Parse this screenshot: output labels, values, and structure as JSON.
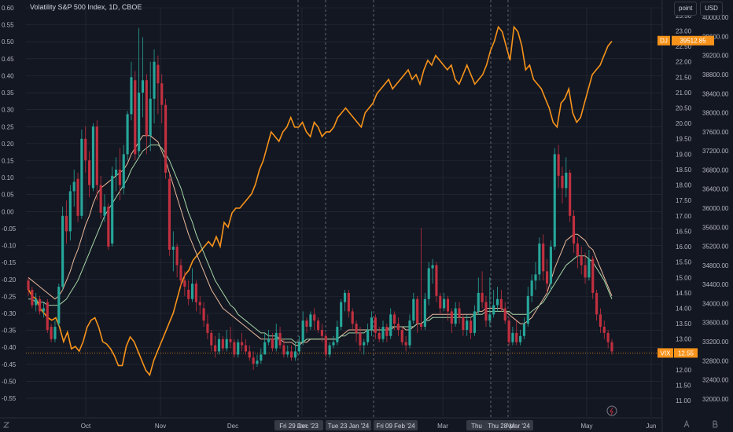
{
  "header": {
    "title": "Volatility S&P 500 Index, 1D, CBOE",
    "scale_mode_button": "point",
    "currency_button": "USD"
  },
  "colors": {
    "background": "#131722",
    "up": "#26a69a",
    "down": "#c2303f",
    "overlay": "#f7931a",
    "ma_fast": "#e8b89a",
    "ma_slow": "#a5d6a7",
    "grid": "#2a2e39",
    "vix_line": "#f7931a"
  },
  "chart_data": {
    "type": "candlestick",
    "title": "Volatility S&P 500 Index, 1D, CBOE",
    "left_axis": {
      "label": "",
      "ticks": [
        "0.60",
        "0.55",
        "0.50",
        "0.45",
        "0.40",
        "0.35",
        "0.30",
        "0.25",
        "0.20",
        "0.15",
        "0.10",
        "0.05",
        "0.00",
        "-0.05",
        "-0.10",
        "-0.15",
        "-0.20",
        "-0.25",
        "-0.30",
        "-0.35",
        "-0.40",
        "-0.45",
        "-0.50",
        "-0.55"
      ],
      "range": [
        -0.58,
        0.6
      ]
    },
    "right_axis_inner": {
      "label": "",
      "ticks": [
        "23.50",
        "23.00",
        "22.50",
        "22.00",
        "21.50",
        "21.00",
        "20.50",
        "20.00",
        "19.50",
        "19.00",
        "18.50",
        "18.00",
        "17.50",
        "17.00",
        "16.50",
        "16.00",
        "15.50",
        "15.00",
        "14.50",
        "14.00",
        "13.50",
        "13.00",
        "12.50",
        "12.00",
        "11.50",
        "11.00"
      ],
      "range": [
        10.75,
        23.75
      ]
    },
    "right_axis_outer": {
      "label": "",
      "ticks": [
        "40000.00",
        "39600.00",
        "39200.00",
        "38800.00",
        "38400.00",
        "38000.00",
        "37600.00",
        "37200.00",
        "36800.00",
        "36400.00",
        "36000.00",
        "35600.00",
        "35200.00",
        "34800.00",
        "34400.00",
        "34000.00",
        "33600.00",
        "33200.00",
        "32800.00",
        "32400.00",
        "32000.00"
      ],
      "range": [
        31800,
        40200
      ]
    },
    "x_ticks": [
      "Oct",
      "Nov",
      "Dec",
      "Jan",
      "Mar",
      "Apr",
      "May",
      "Jun"
    ],
    "crosshair_labels": [
      "Fri 29 Dec '23",
      "Tue 23 Jan '24",
      "Fri 09 Feb '24",
      "Thu",
      "Thu 28 Mar '24"
    ],
    "last_values": {
      "overlay_symbol": "DJ",
      "overlay": "39512.85",
      "vix_symbol": "VIX",
      "vix": "12.55"
    },
    "vix_candles": [
      [
        14.9,
        14.6,
        15.0,
        14.4
      ],
      [
        14.6,
        14.1,
        14.7,
        14.0
      ],
      [
        14.1,
        14.3,
        14.5,
        13.9
      ],
      [
        14.3,
        13.9,
        14.4,
        13.8
      ],
      [
        13.9,
        14.0,
        14.2,
        13.7
      ],
      [
        14.2,
        13.3,
        14.3,
        13.2
      ],
      [
        13.4,
        13.0,
        13.5,
        12.9
      ],
      [
        13.0,
        13.4,
        13.6,
        12.9
      ],
      [
        13.5,
        14.7,
        14.8,
        13.4
      ],
      [
        14.7,
        17.0,
        17.3,
        14.6
      ],
      [
        17.0,
        16.5,
        17.5,
        16.1
      ],
      [
        16.5,
        17.8,
        18.0,
        16.2
      ],
      [
        17.8,
        18.1,
        18.5,
        17.3
      ],
      [
        18.2,
        17.0,
        18.4,
        16.8
      ],
      [
        17.0,
        19.5,
        19.8,
        16.9
      ],
      [
        19.5,
        18.8,
        19.9,
        18.4
      ],
      [
        18.8,
        18.0,
        19.1,
        17.6
      ],
      [
        17.9,
        19.9,
        20.0,
        17.8
      ],
      [
        19.9,
        18.0,
        20.1,
        17.5
      ],
      [
        18.0,
        17.1,
        18.3,
        16.9
      ],
      [
        17.0,
        17.3,
        17.7,
        16.8
      ],
      [
        17.3,
        16.0,
        17.4,
        15.9
      ],
      [
        16.1,
        18.3,
        18.6,
        16.0
      ],
      [
        18.3,
        18.5,
        18.9,
        17.8
      ],
      [
        18.5,
        18.0,
        19.2,
        17.5
      ],
      [
        17.9,
        19.0,
        19.3,
        17.7
      ],
      [
        19.0,
        20.3,
        20.4,
        18.8
      ],
      [
        20.3,
        21.5,
        22.0,
        20.1
      ],
      [
        21.4,
        19.0,
        21.7,
        18.8
      ],
      [
        19.1,
        21.0,
        23.1,
        18.9
      ],
      [
        21.0,
        21.4,
        22.8,
        20.2
      ],
      [
        21.4,
        19.6,
        21.6,
        19.0
      ],
      [
        19.6,
        20.8,
        22.0,
        19.1
      ],
      [
        20.8,
        22.0,
        22.4,
        20.0
      ],
      [
        21.9,
        21.3,
        22.2,
        20.3
      ],
      [
        21.3,
        20.6,
        21.6,
        20.0
      ],
      [
        20.6,
        18.4,
        20.8,
        18.2
      ],
      [
        18.2,
        15.9,
        18.4,
        15.7
      ],
      [
        15.9,
        16.0,
        16.5,
        15.2
      ],
      [
        16.0,
        15.4,
        16.1,
        15.0
      ],
      [
        15.4,
        14.9,
        15.6,
        14.7
      ],
      [
        14.9,
        14.7,
        15.2,
        14.4
      ],
      [
        14.6,
        14.3,
        14.9,
        14.1
      ],
      [
        14.3,
        14.8,
        15.3,
        14.2
      ],
      [
        14.8,
        14.2,
        14.9,
        13.9
      ],
      [
        14.2,
        14.1,
        14.4,
        13.8
      ],
      [
        14.0,
        13.6,
        14.2,
        13.4
      ],
      [
        13.5,
        13.2,
        13.8,
        13.0
      ],
      [
        13.2,
        12.8,
        13.3,
        12.6
      ],
      [
        12.8,
        12.6,
        13.1,
        12.4
      ],
      [
        12.6,
        13.0,
        13.2,
        12.5
      ],
      [
        13.0,
        12.7,
        13.1,
        12.6
      ],
      [
        12.7,
        13.0,
        13.3,
        12.6
      ],
      [
        13.0,
        12.9,
        13.4,
        12.7
      ],
      [
        12.9,
        12.5,
        13.0,
        12.4
      ],
      [
        12.5,
        12.9,
        13.0,
        12.4
      ],
      [
        12.9,
        12.8,
        13.2,
        12.6
      ],
      [
        12.8,
        12.6,
        13.0,
        12.5
      ],
      [
        12.6,
        12.4,
        12.8,
        12.3
      ],
      [
        12.4,
        12.2,
        12.6,
        12.0
      ],
      [
        12.2,
        12.3,
        12.5,
        12.1
      ],
      [
        12.3,
        12.5,
        12.7,
        12.2
      ],
      [
        12.5,
        12.9,
        13.2,
        12.5
      ],
      [
        12.9,
        13.0,
        13.3,
        12.8
      ],
      [
        13.0,
        12.7,
        13.2,
        12.6
      ],
      [
        12.7,
        13.2,
        13.5,
        12.6
      ],
      [
        13.2,
        12.8,
        13.4,
        12.7
      ],
      [
        12.8,
        12.5,
        13.0,
        12.4
      ],
      [
        12.5,
        12.6,
        12.8,
        12.4
      ],
      [
        12.6,
        12.4,
        12.8,
        12.3
      ],
      [
        12.4,
        12.6,
        12.9,
        12.3
      ],
      [
        12.6,
        12.9,
        13.1,
        12.5
      ],
      [
        12.9,
        13.6,
        13.9,
        12.8
      ],
      [
        13.6,
        13.4,
        13.7,
        13.2
      ],
      [
        13.4,
        13.8,
        13.9,
        13.3
      ],
      [
        13.8,
        13.6,
        14.0,
        13.3
      ],
      [
        13.6,
        13.3,
        13.7,
        13.2
      ],
      [
        13.3,
        13.1,
        13.5,
        12.9
      ],
      [
        13.1,
        12.5,
        13.2,
        12.4
      ],
      [
        12.5,
        12.8,
        12.9,
        12.4
      ],
      [
        12.8,
        12.9,
        13.1,
        12.7
      ],
      [
        12.9,
        13.4,
        13.6,
        12.8
      ],
      [
        13.4,
        14.2,
        14.3,
        13.3
      ],
      [
        14.2,
        14.5,
        14.6,
        13.9
      ],
      [
        14.5,
        13.9,
        14.6,
        13.7
      ],
      [
        13.9,
        13.5,
        14.0,
        13.3
      ],
      [
        13.5,
        13.2,
        13.6,
        12.9
      ],
      [
        13.2,
        12.8,
        13.4,
        12.6
      ],
      [
        12.8,
        12.9,
        13.0,
        12.5
      ],
      [
        12.9,
        13.3,
        13.5,
        12.8
      ],
      [
        13.3,
        13.7,
        13.9,
        13.1
      ],
      [
        13.7,
        13.2,
        13.8,
        13.0
      ],
      [
        13.2,
        13.0,
        13.4,
        12.9
      ],
      [
        13.0,
        13.4,
        13.6,
        12.9
      ],
      [
        13.4,
        13.1,
        13.5,
        12.9
      ],
      [
        13.1,
        13.8,
        14.0,
        13.0
      ],
      [
        13.8,
        13.5,
        13.9,
        13.3
      ],
      [
        13.5,
        13.3,
        13.7,
        13.1
      ],
      [
        13.3,
        12.9,
        13.4,
        12.8
      ],
      [
        12.9,
        12.8,
        13.1,
        12.6
      ],
      [
        12.8,
        13.6,
        13.8,
        12.7
      ],
      [
        13.6,
        14.3,
        14.5,
        13.5
      ],
      [
        14.3,
        13.5,
        14.4,
        13.2
      ],
      [
        13.5,
        13.4,
        16.6,
        13.3
      ],
      [
        13.4,
        14.3,
        14.5,
        13.3
      ],
      [
        14.3,
        15.3,
        15.5,
        14.1
      ],
      [
        15.3,
        15.4,
        15.6,
        14.8
      ],
      [
        15.4,
        14.4,
        15.5,
        14.2
      ],
      [
        14.4,
        14.0,
        14.5,
        13.8
      ],
      [
        14.0,
        14.3,
        14.5,
        13.9
      ],
      [
        14.3,
        13.9,
        14.4,
        13.6
      ],
      [
        13.9,
        13.5,
        14.0,
        13.2
      ],
      [
        13.5,
        14.0,
        14.2,
        13.4
      ],
      [
        14.0,
        13.7,
        14.2,
        13.5
      ],
      [
        13.7,
        13.3,
        13.8,
        13.1
      ],
      [
        13.3,
        13.6,
        13.8,
        13.1
      ],
      [
        13.6,
        13.2,
        13.7,
        13.0
      ],
      [
        13.2,
        13.9,
        14.1,
        13.1
      ],
      [
        13.9,
        14.5,
        15.0,
        13.8
      ],
      [
        14.5,
        14.2,
        15.2,
        14.0
      ],
      [
        14.2,
        13.6,
        14.4,
        13.4
      ],
      [
        13.6,
        13.8,
        15.0,
        13.4
      ],
      [
        13.8,
        14.1,
        14.6,
        13.7
      ],
      [
        14.1,
        14.3,
        14.7,
        13.9
      ],
      [
        14.3,
        14.0,
        14.6,
        13.9
      ],
      [
        14.0,
        13.6,
        14.2,
        13.5
      ],
      [
        13.6,
        12.9,
        13.7,
        12.8
      ],
      [
        12.9,
        13.2,
        13.4,
        12.8
      ],
      [
        13.2,
        12.9,
        13.6,
        12.8
      ],
      [
        12.9,
        13.1,
        13.3,
        12.8
      ],
      [
        13.1,
        13.5,
        13.7,
        13.0
      ],
      [
        13.5,
        14.4,
        14.7,
        13.4
      ],
      [
        14.4,
        14.9,
        15.1,
        14.2
      ],
      [
        14.9,
        15.1,
        15.5,
        14.6
      ],
      [
        15.1,
        16.1,
        16.3,
        14.9
      ],
      [
        16.1,
        15.2,
        16.4,
        14.9
      ],
      [
        15.2,
        14.8,
        15.6,
        14.5
      ],
      [
        14.8,
        16.0,
        16.2,
        14.6
      ],
      [
        16.0,
        19.0,
        19.2,
        15.9
      ],
      [
        19.0,
        18.3,
        19.3,
        17.9
      ],
      [
        18.3,
        17.9,
        18.6,
        17.4
      ],
      [
        17.9,
        18.4,
        18.9,
        17.6
      ],
      [
        18.4,
        17.0,
        18.5,
        16.8
      ],
      [
        17.0,
        16.1,
        17.2,
        15.8
      ],
      [
        16.1,
        15.7,
        16.3,
        15.3
      ],
      [
        15.7,
        15.4,
        16.0,
        15.1
      ],
      [
        15.4,
        15.0,
        15.8,
        14.8
      ],
      [
        15.0,
        15.6,
        15.9,
        14.9
      ],
      [
        15.6,
        14.5,
        15.7,
        14.3
      ],
      [
        14.5,
        13.8,
        14.6,
        13.6
      ],
      [
        13.8,
        13.4,
        14.0,
        13.2
      ],
      [
        13.4,
        13.2,
        13.6,
        13.0
      ],
      [
        13.2,
        12.9,
        13.3,
        12.7
      ],
      [
        12.9,
        12.6,
        13.0,
        12.5
      ]
    ],
    "ma_fast": [
      15.0,
      14.9,
      14.8,
      14.7,
      14.6,
      14.5,
      14.4,
      14.3,
      14.4,
      14.6,
      14.9,
      15.2,
      15.6,
      15.9,
      16.3,
      16.7,
      17.0,
      17.4,
      17.7,
      17.9,
      18.0,
      18.1,
      18.2,
      18.3,
      18.4,
      18.5,
      18.7,
      19.0,
      19.2,
      19.4,
      19.6,
      19.6,
      19.6,
      19.5,
      19.4,
      19.1,
      18.8,
      18.4,
      18.0,
      17.6,
      17.2,
      16.8,
      16.4,
      16.1,
      15.8,
      15.5,
      15.2,
      14.9,
      14.6,
      14.4,
      14.2,
      14.0,
      13.9,
      13.8,
      13.7,
      13.6,
      13.5,
      13.4,
      13.3,
      13.2,
      13.1,
      13.0,
      13.0,
      13.0,
      13.0,
      13.0,
      13.0,
      12.9,
      12.9,
      12.9,
      12.8,
      12.8,
      12.9,
      12.9,
      13.0,
      13.0,
      13.0,
      13.0,
      13.0,
      13.0,
      13.0,
      13.0,
      13.1,
      13.2,
      13.3,
      13.3,
      13.3,
      13.3,
      13.3,
      13.3,
      13.3,
      13.3,
      13.3,
      13.3,
      13.3,
      13.4,
      13.4,
      13.4,
      13.4,
      13.3,
      13.3,
      13.4,
      13.5,
      13.5,
      13.6,
      13.7,
      13.8,
      13.8,
      13.8,
      13.8,
      13.8,
      13.8,
      13.8,
      13.8,
      13.8,
      13.8,
      13.8,
      13.8,
      13.9,
      13.9,
      14.0,
      14.0,
      14.0,
      14.0,
      14.0,
      13.9,
      13.8,
      13.7,
      13.6,
      13.5,
      13.5,
      13.6,
      13.7,
      13.9,
      14.1,
      14.3,
      14.5,
      14.9,
      15.3,
      15.6,
      15.9,
      16.2,
      16.3,
      16.4,
      16.4,
      16.3,
      16.2,
      16.0,
      15.9,
      15.6,
      15.3,
      15.0,
      14.7,
      14.4
    ],
    "ma_slow": [
      14.3,
      14.3,
      14.2,
      14.2,
      14.2,
      14.1,
      14.1,
      14.1,
      14.1,
      14.2,
      14.3,
      14.5,
      14.7,
      14.9,
      15.2,
      15.5,
      15.8,
      16.1,
      16.4,
      16.7,
      17.0,
      17.2,
      17.4,
      17.6,
      17.8,
      18.0,
      18.2,
      18.5,
      18.7,
      18.9,
      19.1,
      19.2,
      19.3,
      19.3,
      19.3,
      19.2,
      19.0,
      18.8,
      18.5,
      18.2,
      17.9,
      17.5,
      17.1,
      16.8,
      16.4,
      16.1,
      15.8,
      15.5,
      15.2,
      14.9,
      14.7,
      14.5,
      14.3,
      14.1,
      14.0,
      13.8,
      13.7,
      13.6,
      13.5,
      13.4,
      13.3,
      13.2,
      13.2,
      13.1,
      13.1,
      13.1,
      13.0,
      13.0,
      13.0,
      13.0,
      12.9,
      12.9,
      12.9,
      13.0,
      13.0,
      13.0,
      13.0,
      13.0,
      13.0,
      13.0,
      13.0,
      13.0,
      13.1,
      13.1,
      13.2,
      13.2,
      13.2,
      13.2,
      13.2,
      13.3,
      13.3,
      13.3,
      13.3,
      13.3,
      13.3,
      13.3,
      13.4,
      13.4,
      13.4,
      13.4,
      13.4,
      13.4,
      13.5,
      13.5,
      13.6,
      13.6,
      13.7,
      13.7,
      13.7,
      13.7,
      13.7,
      13.7,
      13.7,
      13.7,
      13.7,
      13.7,
      13.7,
      13.8,
      13.8,
      13.8,
      13.9,
      13.9,
      13.9,
      13.9,
      13.9,
      13.9,
      13.9,
      13.8,
      13.8,
      13.8,
      13.8,
      13.8,
      13.9,
      14.0,
      14.1,
      14.2,
      14.4,
      14.6,
      14.8,
      15.0,
      15.2,
      15.4,
      15.5,
      15.6,
      15.7,
      15.7,
      15.7,
      15.6,
      15.5,
      15.3,
      15.1,
      14.9,
      14.6,
      14.3
    ],
    "overlay_series": [
      34300,
      34150,
      34100,
      33900,
      33800,
      33700,
      33650,
      33700,
      33500,
      33200,
      33400,
      33050,
      33100,
      33000,
      33200,
      33500,
      33650,
      33700,
      33500,
      33200,
      33150,
      33050,
      32900,
      32700,
      32700,
      33100,
      33300,
      33200,
      33000,
      32800,
      32600,
      32500,
      32800,
      33000,
      33200,
      33400,
      33600,
      33800,
      34100,
      34400,
      34600,
      34700,
      34900,
      35000,
      35100,
      35200,
      35300,
      35200,
      35400,
      35200,
      35700,
      35600,
      35900,
      36000,
      36000,
      36100,
      36200,
      36300,
      36500,
      36800,
      37000,
      37300,
      37600,
      37500,
      37400,
      37600,
      37700,
      37900,
      37700,
      37700,
      37800,
      37600,
      37500,
      37800,
      37700,
      37500,
      37600,
      37600,
      37700,
      37900,
      38000,
      38100,
      38000,
      37900,
      37800,
      37700,
      38000,
      38100,
      38200,
      38400,
      38500,
      38600,
      38700,
      38500,
      38600,
      38700,
      38800,
      38900,
      38700,
      38800,
      38600,
      38900,
      39100,
      39000,
      39200,
      39100,
      39000,
      38900,
      39000,
      38700,
      38600,
      38800,
      39000,
      38800,
      38600,
      38700,
      38800,
      39000,
      39300,
      39500,
      39800,
      39700,
      39400,
      39100,
      39800,
      39700,
      39400,
      38900,
      39000,
      38700,
      38600,
      38500,
      38300,
      38100,
      37800,
      37700,
      38200,
      38300,
      38500,
      38000,
      37800,
      37900,
      38200,
      38500,
      38800,
      38900,
      39000,
      39200,
      39400,
      39500
    ]
  }
}
